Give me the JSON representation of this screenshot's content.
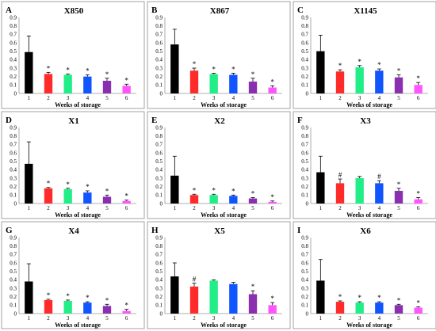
{
  "colors": [
    "#000000",
    "#ff2a2a",
    "#22ee88",
    "#1155ff",
    "#8a2fb0",
    "#ff55ff"
  ],
  "chart_data": [
    {
      "type": "bar",
      "letter": "A",
      "title": "X850",
      "categories": [
        "1",
        "2",
        "3",
        "4",
        "5",
        "6"
      ],
      "values": [
        0.49,
        0.23,
        0.22,
        0.2,
        0.15,
        0.09
      ],
      "errors": [
        0.19,
        0.02,
        0.01,
        0.02,
        0.03,
        0.02
      ],
      "marks": [
        "",
        "*",
        "*",
        "*",
        "*",
        "*"
      ],
      "xlabel": "Weeks of storage",
      "ylim": [
        0,
        0.9
      ],
      "yticks": [
        "0",
        "0.1",
        "0.2",
        "0.3",
        "0.4",
        "0.5",
        "0.6",
        "0.7",
        "0.8",
        "0.9"
      ]
    },
    {
      "type": "bar",
      "letter": "B",
      "title": "X867",
      "categories": [
        "1",
        "2",
        "3",
        "4",
        "5",
        "6"
      ],
      "values": [
        0.58,
        0.27,
        0.23,
        0.22,
        0.14,
        0.07
      ],
      "errors": [
        0.18,
        0.03,
        0.01,
        0.02,
        0.04,
        0.02
      ],
      "marks": [
        "",
        "*",
        "*",
        "*",
        "*",
        "*"
      ],
      "xlabel": "Weeks of storage",
      "ylim": [
        0,
        0.9
      ],
      "yticks": [
        "0",
        "0.1",
        "0.2",
        "0.3",
        "0.4",
        "0.5",
        "0.6",
        "0.7",
        "0.8",
        "0.9"
      ]
    },
    {
      "type": "bar",
      "letter": "C",
      "title": "X1145",
      "categories": [
        "1",
        "2",
        "3",
        "4",
        "5",
        "6"
      ],
      "values": [
        0.5,
        0.26,
        0.31,
        0.27,
        0.19,
        0.1
      ],
      "errors": [
        0.19,
        0.02,
        0.02,
        0.02,
        0.03,
        0.03
      ],
      "marks": [
        "",
        "*",
        "*",
        "*",
        "*",
        "*"
      ],
      "xlabel": "Weeks of storage",
      "ylim": [
        0,
        0.9
      ],
      "yticks": [
        "0",
        "0.1",
        "0.2",
        "0.3",
        "0.4",
        "0.5",
        "0.6",
        "0.7",
        "0.8",
        "0.9"
      ]
    },
    {
      "type": "bar",
      "letter": "D",
      "title": "X1",
      "categories": [
        "1",
        "2",
        "3",
        "4",
        "5",
        "6"
      ],
      "values": [
        0.47,
        0.18,
        0.17,
        0.13,
        0.08,
        0.03
      ],
      "errors": [
        0.26,
        0.01,
        0.01,
        0.02,
        0.02,
        0.01
      ],
      "marks": [
        "",
        "*",
        "*",
        "*",
        "*",
        "*"
      ],
      "xlabel": "Weeks of storage",
      "ylim": [
        0,
        0.9
      ],
      "yticks": [
        "0",
        "0.1",
        "0.2",
        "0.3",
        "0.4",
        "0.5",
        "0.6",
        "0.7",
        "0.8",
        "0.9"
      ]
    },
    {
      "type": "bar",
      "letter": "E",
      "title": "X2",
      "categories": [
        "1",
        "2",
        "3",
        "4",
        "5",
        "6"
      ],
      "values": [
        0.33,
        0.1,
        0.1,
        0.09,
        0.06,
        0.02
      ],
      "errors": [
        0.23,
        0.01,
        0.01,
        0.01,
        0.01,
        0.01
      ],
      "marks": [
        "",
        "*",
        "*",
        "*",
        "*",
        "*"
      ],
      "xlabel": "Weeks of storage",
      "ylim": [
        0,
        0.9
      ],
      "yticks": [
        "0",
        "0.1",
        "0.2",
        "0.3",
        "0.4",
        "0.5",
        "0.6",
        "0.7",
        "0.8",
        "0.9"
      ]
    },
    {
      "type": "bar",
      "letter": "F",
      "title": "X3",
      "categories": [
        "1",
        "2",
        "3",
        "4",
        "5",
        "6"
      ],
      "values": [
        0.37,
        0.24,
        0.3,
        0.24,
        0.15,
        0.05
      ],
      "errors": [
        0.19,
        0.05,
        0.02,
        0.03,
        0.03,
        0.02
      ],
      "marks": [
        "",
        "#",
        "",
        "#",
        "*",
        "*"
      ],
      "xlabel": "Weeks of storage",
      "ylim": [
        0,
        0.9
      ],
      "yticks": [
        "0",
        "0.1",
        "0.2",
        "0.3",
        "0.4",
        "0.5",
        "0.6",
        "0.7",
        "0.8",
        "0.9"
      ]
    },
    {
      "type": "bar",
      "letter": "G",
      "title": "X4",
      "categories": [
        "1",
        "2",
        "3",
        "4",
        "5",
        "6"
      ],
      "values": [
        0.38,
        0.16,
        0.15,
        0.13,
        0.09,
        0.03
      ],
      "errors": [
        0.21,
        0.01,
        0.01,
        0.01,
        0.02,
        0.02
      ],
      "marks": [
        "",
        "*",
        "*",
        "*",
        "*",
        "*"
      ],
      "xlabel": "Weeks of storage",
      "ylim": [
        0,
        0.9
      ],
      "yticks": [
        "0",
        "0.1",
        "0.2",
        "0.3",
        "0.4",
        "0.5",
        "0.6",
        "0.7",
        "0.8",
        "0.9"
      ]
    },
    {
      "type": "bar",
      "letter": "H",
      "title": "X5",
      "categories": [
        "1",
        "2",
        "3",
        "4",
        "5",
        "6"
      ],
      "values": [
        0.44,
        0.32,
        0.39,
        0.35,
        0.23,
        0.1
      ],
      "errors": [
        0.16,
        0.04,
        0.01,
        0.02,
        0.04,
        0.03
      ],
      "marks": [
        "",
        "#",
        "",
        "",
        "*",
        "*"
      ],
      "xlabel": "Weeks of storage",
      "ylim": [
        0,
        0.9
      ],
      "yticks": [
        "0",
        "0.1",
        "0.2",
        "0.3",
        "0.4",
        "0.5",
        "0.6",
        "0.7",
        "0.8",
        "0.9"
      ]
    },
    {
      "type": "bar",
      "letter": "I",
      "title": "X6",
      "categories": [
        "1",
        "2",
        "3",
        "4",
        "5",
        "6"
      ],
      "values": [
        0.39,
        0.14,
        0.13,
        0.13,
        0.1,
        0.07
      ],
      "errors": [
        0.25,
        0.01,
        0.01,
        0.01,
        0.01,
        0.01
      ],
      "marks": [
        "",
        "*",
        "*",
        "*",
        "*",
        "*"
      ],
      "xlabel": "Weeks of storage",
      "ylim": [
        0,
        0.9
      ],
      "yticks": [
        "0",
        "0.1",
        "0.2",
        "0.3",
        "0.4",
        "0.5",
        "0.6",
        "0.7",
        "0.8",
        "0.9"
      ]
    }
  ]
}
